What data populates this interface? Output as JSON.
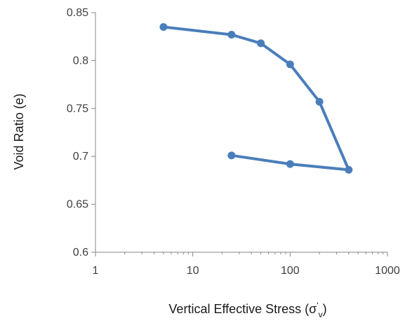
{
  "chart_data": {
    "type": "line",
    "title": "",
    "xlabel": "Vertical Effective Stress (σ",
    "xlabel_sub": "v",
    "xlabel_sup": "'",
    "xlabel_end": ")",
    "ylabel": "Void Ratio (e)",
    "x_scale": "log",
    "xlim": [
      1,
      1000
    ],
    "ylim": [
      0.6,
      0.85
    ],
    "x_ticks": [
      1,
      10,
      100,
      1000
    ],
    "x_tick_labels": [
      "1",
      "10",
      "100",
      "1000"
    ],
    "y_ticks": [
      0.6,
      0.65,
      0.7,
      0.75,
      0.8,
      0.85
    ],
    "y_tick_labels": [
      "0.6",
      "0.65",
      "0.7",
      "0.75",
      "0.8",
      "0.85"
    ],
    "grid": false,
    "legend": "none",
    "series": [
      {
        "color": "#4a7ebb",
        "x": [
          5,
          25,
          50,
          100,
          200,
          400,
          100,
          25
        ],
        "y": [
          0.835,
          0.827,
          0.818,
          0.796,
          0.757,
          0.686,
          0.692,
          0.701
        ]
      }
    ]
  }
}
